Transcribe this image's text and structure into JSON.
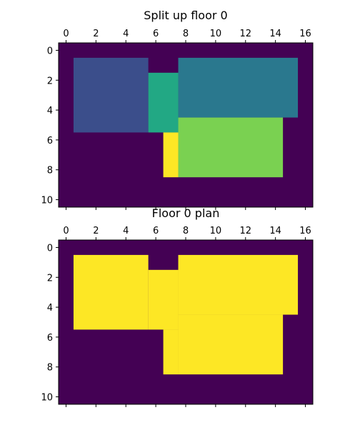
{
  "chart_data": [
    {
      "type": "heatmap",
      "title": "Split up floor 0",
      "x_ticks": [
        0,
        2,
        4,
        6,
        8,
        10,
        12,
        14,
        16
      ],
      "y_ticks": [
        0,
        2,
        4,
        6,
        8,
        10
      ],
      "xlim": [
        -0.5,
        16.5
      ],
      "ylim": [
        10.5,
        -0.5
      ],
      "x_tick_position": "top",
      "grid": false,
      "colormap": "viridis",
      "rows": 11,
      "cols": 17,
      "background_value": 0,
      "regions": [
        {
          "value": 1,
          "x": [
            1,
            5
          ],
          "y": [
            1,
            5
          ],
          "color": "#3b4e8b"
        },
        {
          "value": 2,
          "x": [
            8,
            15
          ],
          "y": [
            1,
            4
          ],
          "color": "#2a788e"
        },
        {
          "value": 3,
          "x": [
            6,
            7
          ],
          "y": [
            2,
            5
          ],
          "color": "#22a884"
        },
        {
          "value": 4,
          "x": [
            8,
            14
          ],
          "y": [
            5,
            8
          ],
          "color": "#7ad151"
        },
        {
          "value": 5,
          "x": [
            7,
            7
          ],
          "y": [
            6,
            8
          ],
          "color": "#fde725"
        }
      ],
      "colors": {
        "background": "#440154"
      }
    },
    {
      "type": "heatmap",
      "title": "Floor 0 plan",
      "x_ticks": [
        0,
        2,
        4,
        6,
        8,
        10,
        12,
        14,
        16
      ],
      "y_ticks": [
        0,
        2,
        4,
        6,
        8,
        10
      ],
      "xlim": [
        -0.5,
        16.5
      ],
      "ylim": [
        10.5,
        -0.5
      ],
      "x_tick_position": "top",
      "grid": false,
      "colormap": "viridis",
      "rows": 11,
      "cols": 17,
      "background_value": 0,
      "regions": [
        {
          "value": 1,
          "x": [
            1,
            5
          ],
          "y": [
            1,
            5
          ],
          "color": "#fde725"
        },
        {
          "value": 1,
          "x": [
            8,
            15
          ],
          "y": [
            1,
            4
          ],
          "color": "#fde725"
        },
        {
          "value": 1,
          "x": [
            6,
            7
          ],
          "y": [
            2,
            5
          ],
          "color": "#fde725"
        },
        {
          "value": 1,
          "x": [
            8,
            14
          ],
          "y": [
            5,
            8
          ],
          "color": "#fde725"
        },
        {
          "value": 1,
          "x": [
            7,
            7
          ],
          "y": [
            6,
            8
          ],
          "color": "#fde725"
        }
      ],
      "colors": {
        "background": "#440154"
      }
    }
  ]
}
